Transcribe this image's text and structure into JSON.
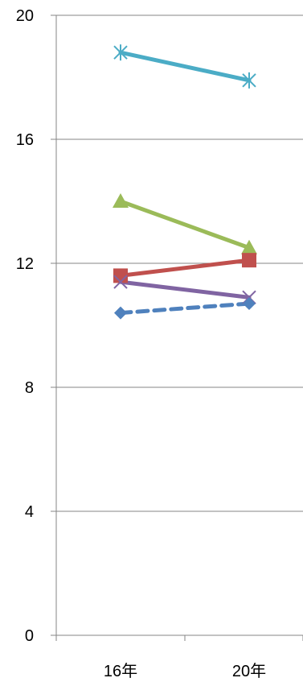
{
  "chart_data": {
    "type": "line",
    "title": "",
    "xlabel": "",
    "ylabel": "",
    "categories": [
      "16年",
      "20年"
    ],
    "y_ticks": [
      "0",
      "4",
      "8",
      "12",
      "16",
      "20"
    ],
    "ylim": [
      0,
      20
    ],
    "grid": true,
    "legend": "none",
    "series": [
      {
        "values": [
          18.8,
          17.9
        ],
        "color": "#4BACC6",
        "marker": "star",
        "dashed": false
      },
      {
        "values": [
          14.0,
          12.5
        ],
        "color": "#9BBB59",
        "marker": "triangle",
        "dashed": false
      },
      {
        "values": [
          11.6,
          12.1
        ],
        "color": "#C0504D",
        "marker": "square",
        "dashed": false
      },
      {
        "values": [
          11.4,
          10.9
        ],
        "color": "#8064A2",
        "marker": "x",
        "dashed": false
      },
      {
        "values": [
          10.4,
          10.7
        ],
        "color": "#4F81BD",
        "marker": "diamond",
        "dashed": true
      }
    ]
  }
}
